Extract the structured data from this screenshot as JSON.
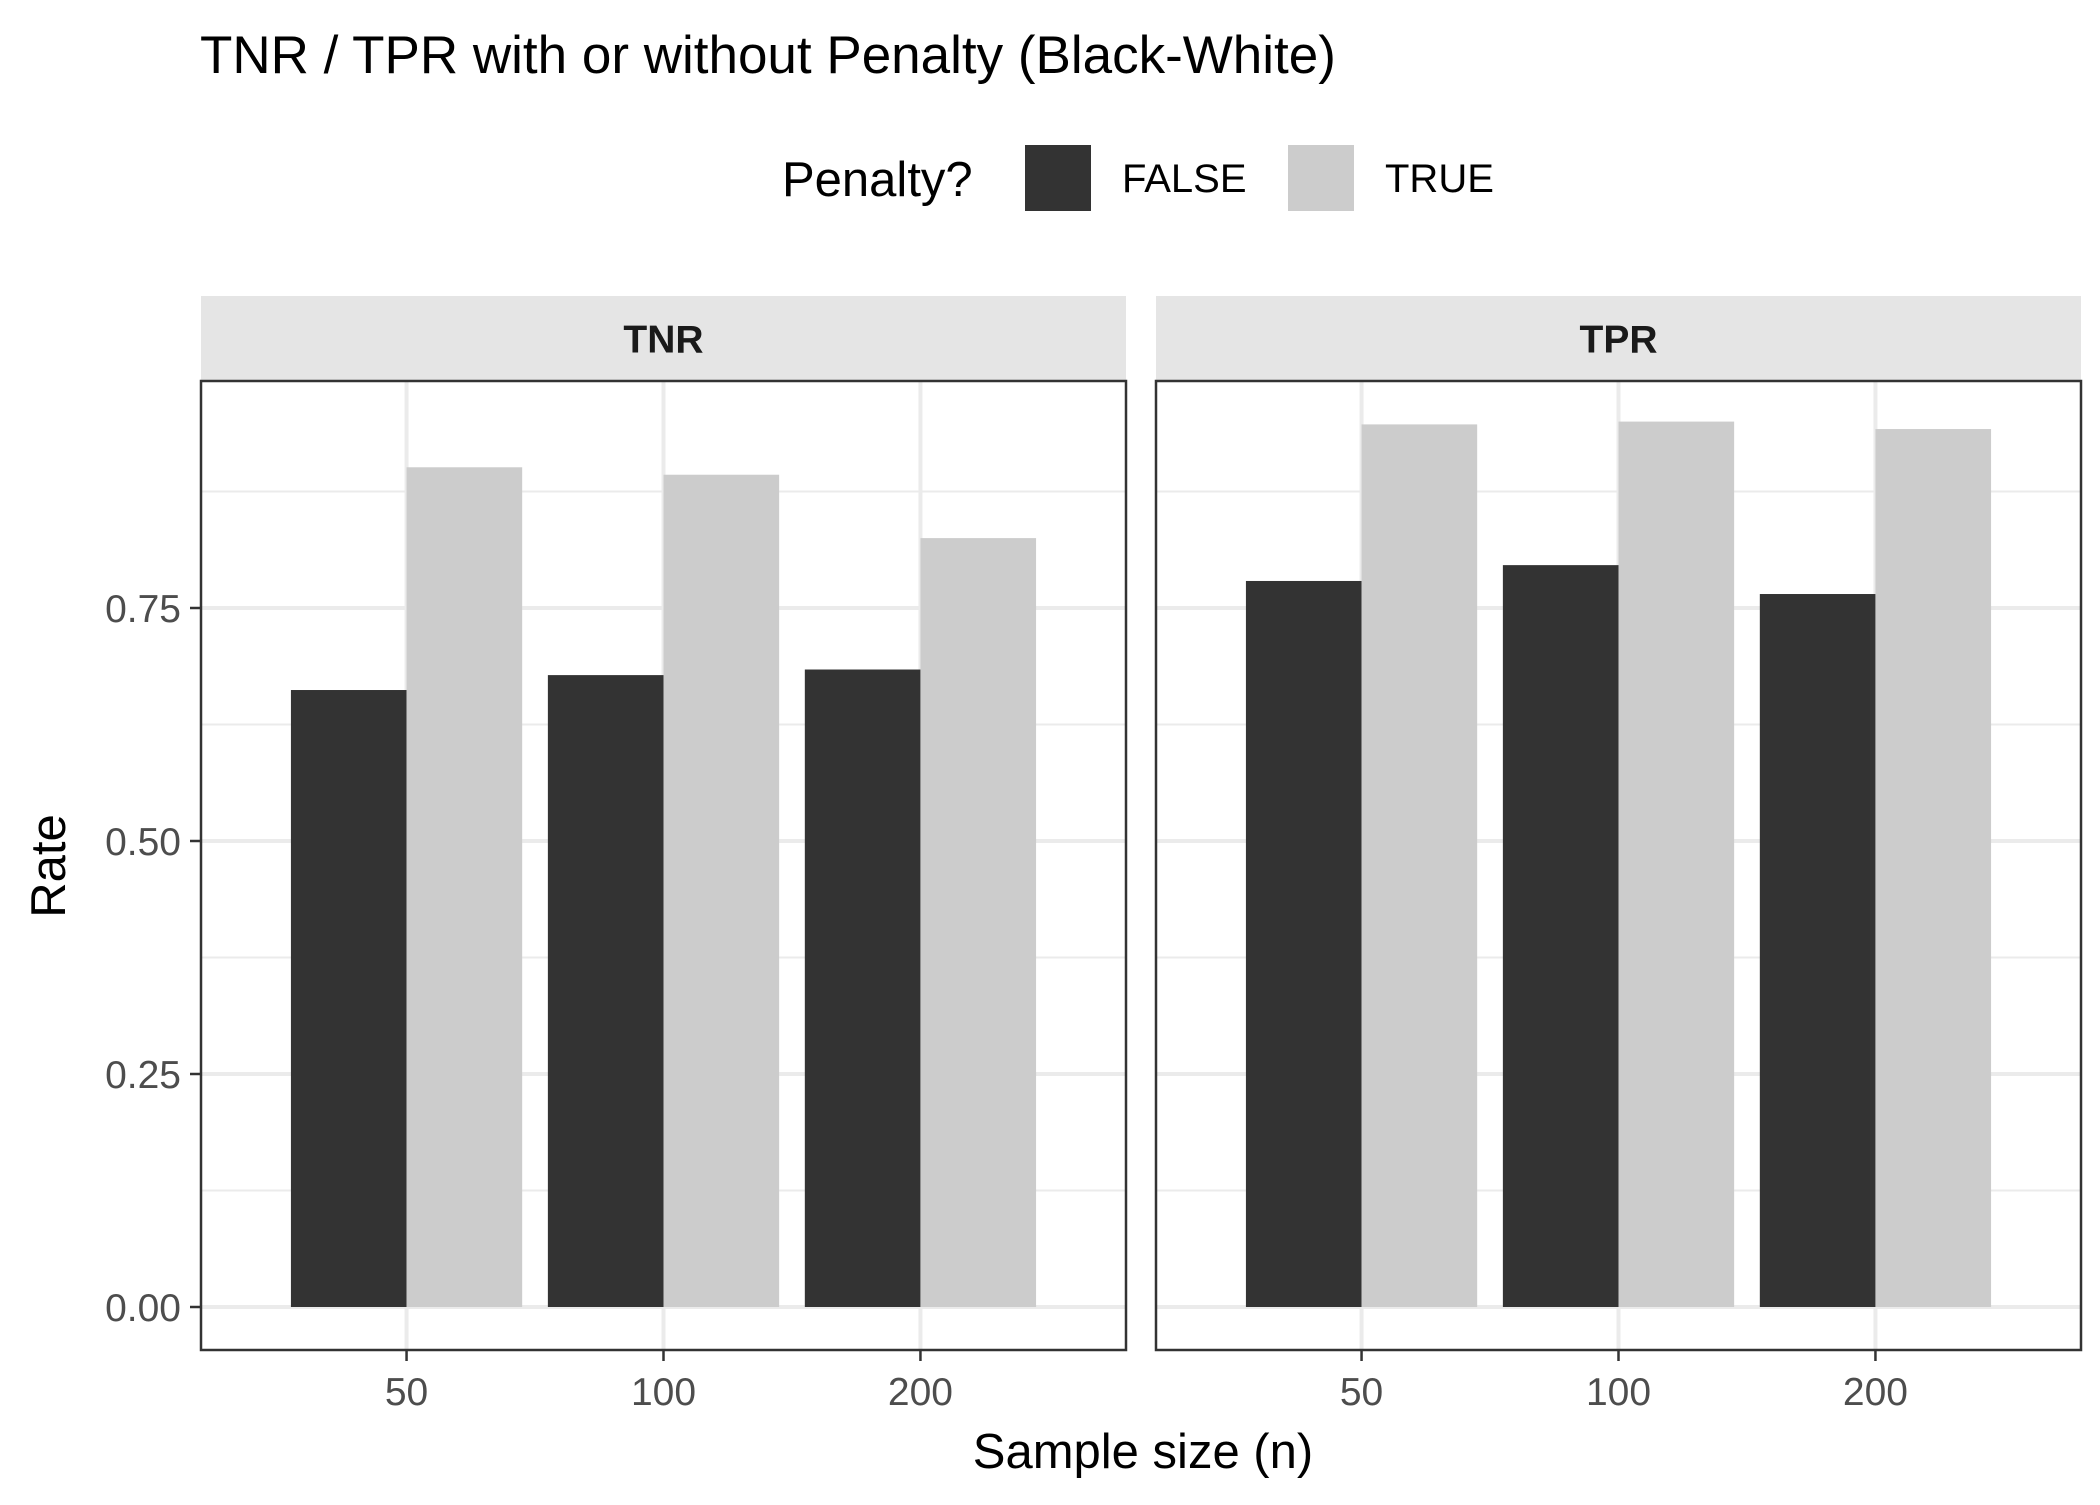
{
  "chart_data": {
    "type": "bar",
    "title": "TNR / TPR with or without Penalty (Black-White)",
    "xlabel": "Sample size (n)",
    "ylabel": "Rate",
    "ylim": [
      -0.046,
      1.0
    ],
    "yticks": [
      "0.00",
      "0.25",
      "0.50",
      "0.75"
    ],
    "ytick_values": [
      0,
      0.25,
      0.5,
      0.75
    ],
    "categories": [
      "50",
      "100",
      "200"
    ],
    "grid": true,
    "legend": {
      "title": "Penalty?",
      "placement": "top",
      "entries": [
        {
          "label": "FALSE",
          "color": "#333333"
        },
        {
          "label": "TRUE",
          "color": "#cccccc"
        }
      ]
    },
    "panels": [
      {
        "label": "TNR",
        "series": [
          {
            "name": "FALSE",
            "values": [
              0.662,
              0.678,
              0.684
            ]
          },
          {
            "name": "TRUE",
            "values": [
              0.901,
              0.893,
              0.825
            ]
          }
        ]
      },
      {
        "label": "TPR",
        "series": [
          {
            "name": "FALSE",
            "values": [
              0.779,
              0.796,
              0.765
            ]
          },
          {
            "name": "TRUE",
            "values": [
              0.947,
              0.95,
              0.942
            ]
          }
        ]
      }
    ]
  }
}
